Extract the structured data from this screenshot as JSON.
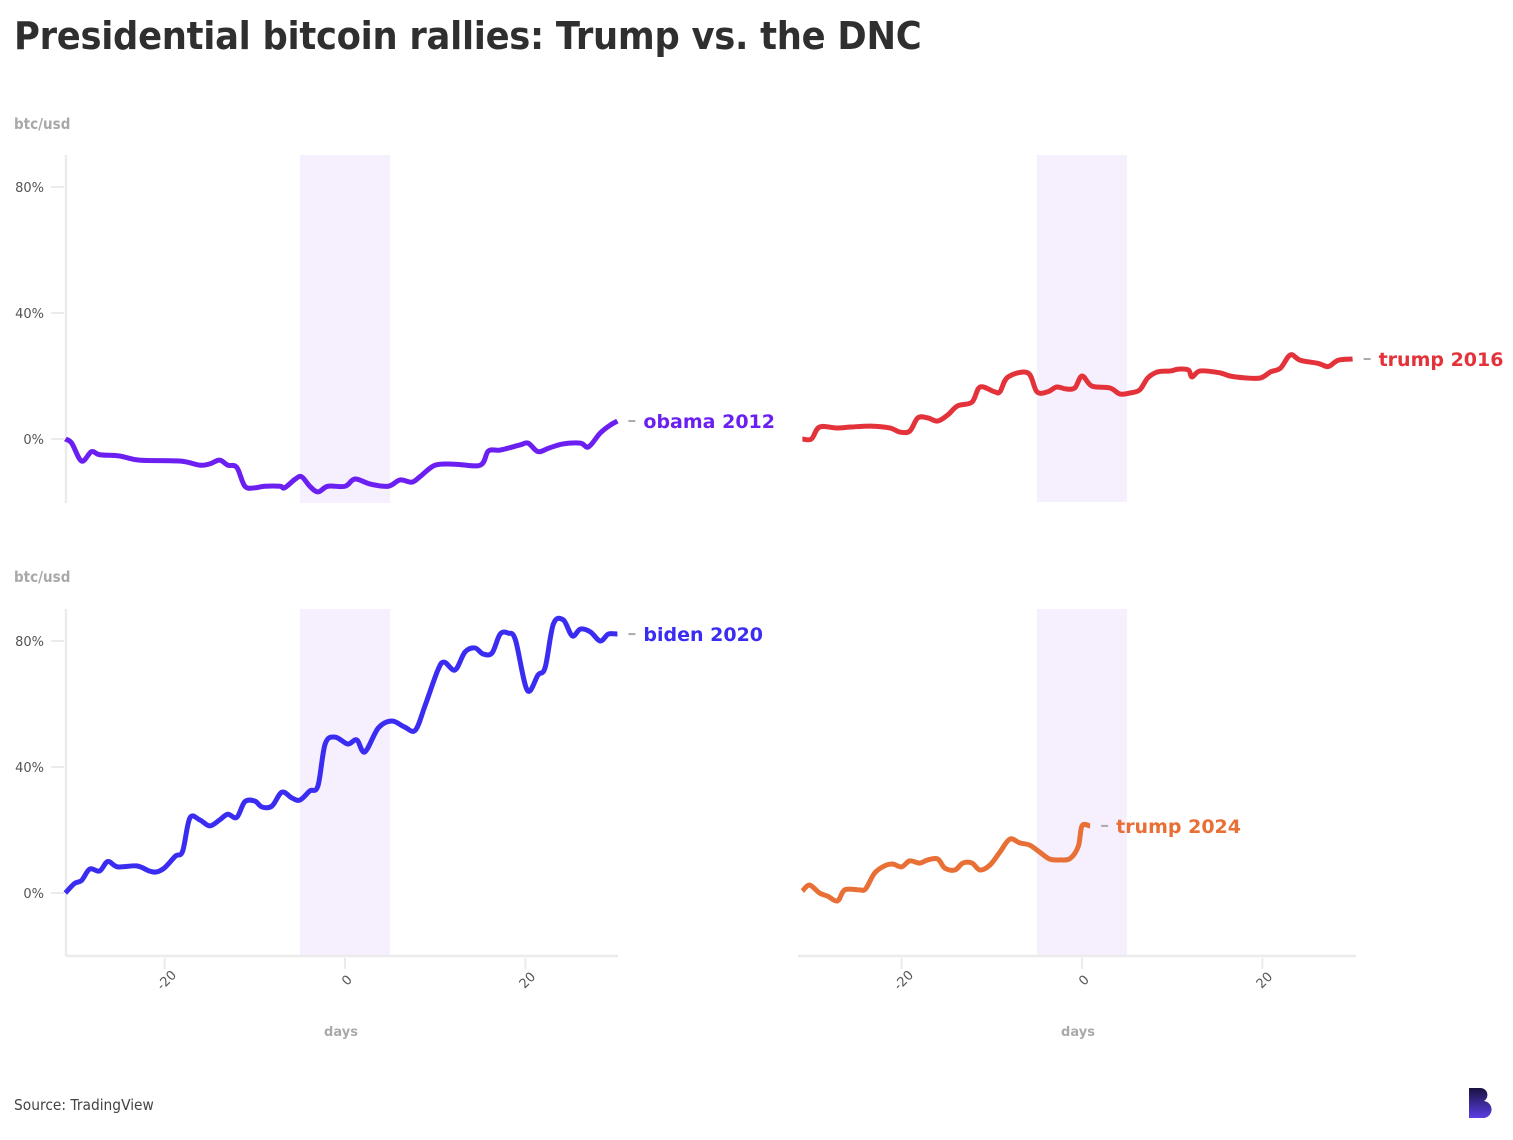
{
  "title": "Presidential bitcoin rallies: Trump vs. the DNC",
  "source": "Source: TradingView",
  "logo": "brand-b-logo",
  "chart_data": [
    {
      "type": "line",
      "panel": "top-left",
      "ylabel": "btc/usd",
      "xlabel": "",
      "yticks": [
        "0%",
        "40%",
        "80%"
      ],
      "ytick_values": [
        0,
        40,
        80
      ],
      "xticks": [
        "-20",
        "0",
        "20"
      ],
      "xtick_values": [
        -20,
        0,
        20
      ],
      "show_y_axis": true,
      "show_x_axis": false,
      "ylim": [
        -20,
        90
      ],
      "xlim": [
        -31,
        30
      ],
      "highlight_band": [
        -5,
        5
      ],
      "series": [
        {
          "name": "obama 2012",
          "color": "#6b1ff0",
          "x": [
            -31,
            -30.3,
            -29.2,
            -28.1,
            -27.2,
            -25,
            -22.8,
            -18.3,
            -16.1,
            -15,
            -13.9,
            -13,
            -12,
            -11.1,
            -10,
            -8.9,
            -7.2,
            -6.7,
            -5.5,
            -4.8,
            -3.9,
            -3,
            -1.9,
            0,
            1.1,
            2.8,
            4.8,
            6.1,
            7.4,
            8.3,
            10,
            12.2,
            15,
            15.9,
            17.2,
            19.4,
            20.3,
            21.4,
            22.6,
            24.1,
            26.1,
            27,
            28.3,
            29.4,
            30.2
          ],
          "values": [
            0,
            -1.3,
            -7,
            -4,
            -5,
            -5.4,
            -6.7,
            -7,
            -8.3,
            -7.9,
            -6.7,
            -8.3,
            -9,
            -15,
            -15.5,
            -15,
            -15,
            -15.5,
            -12.7,
            -12,
            -15,
            -16.8,
            -15,
            -15,
            -12.7,
            -14.3,
            -15,
            -13,
            -13.7,
            -12,
            -8.3,
            -8,
            -8.3,
            -3.8,
            -3.5,
            -1.9,
            -1.3,
            -4,
            -2.9,
            -1.6,
            -1.3,
            -2.5,
            1.9,
            4.4,
            5.7
          ]
        }
      ]
    },
    {
      "type": "line",
      "panel": "top-right",
      "ylabel": "",
      "show_y_axis": false,
      "show_x_axis": false,
      "ylim": [
        -20,
        90
      ],
      "xlim": [
        -31,
        30
      ],
      "highlight_band": [
        -5,
        5
      ],
      "series": [
        {
          "name": "trump 2016",
          "color": "#e3323a",
          "x": [
            -31,
            -30,
            -29.1,
            -27.2,
            -25.6,
            -23.4,
            -21.3,
            -20.2,
            -19.1,
            -18.2,
            -17.1,
            -16,
            -14.9,
            -13.8,
            -12.2,
            -11.3,
            -9.7,
            -9.1,
            -8.2,
            -6,
            -5,
            -3.8,
            -2.8,
            -1.8,
            -0.8,
            0,
            1.1,
            3.1,
            4.2,
            5.3,
            6.4,
            7.3,
            8.4,
            9.8,
            10.7,
            11.8,
            12.2,
            13.1,
            15.3,
            16.4,
            18.1,
            19.8,
            20.9,
            22,
            23.1,
            24.2,
            26.2,
            27.3,
            28.4,
            30
          ],
          "values": [
            0,
            0,
            3.8,
            3.5,
            3.8,
            4.1,
            3.5,
            2.2,
            2.5,
            6.7,
            6.7,
            5.7,
            7.6,
            10.5,
            11.7,
            16.5,
            15,
            15,
            19.7,
            21,
            15,
            15,
            16.5,
            15.9,
            16.2,
            20,
            16.8,
            16.2,
            14.3,
            14.6,
            15.6,
            19.4,
            21.3,
            21.6,
            22.2,
            21.9,
            19.7,
            21.6,
            21,
            20,
            19.4,
            19.4,
            21.3,
            22.5,
            26.7,
            25,
            24,
            23,
            25,
            25.4
          ]
        }
      ]
    },
    {
      "type": "line",
      "panel": "bottom-left",
      "ylabel": "btc/usd",
      "xlabel": "days",
      "yticks": [
        "0%",
        "40%",
        "80%"
      ],
      "ytick_values": [
        0,
        40,
        80
      ],
      "xticks": [
        "-20",
        "0",
        "20"
      ],
      "xtick_values": [
        -20,
        0,
        20
      ],
      "show_y_axis": true,
      "show_x_axis": true,
      "ylim": [
        -20,
        90
      ],
      "xlim": [
        -31,
        30
      ],
      "highlight_band": [
        -5,
        5
      ],
      "series": [
        {
          "name": "biden 2020",
          "color": "#3b2cf2",
          "x": [
            -31,
            -30,
            -29.2,
            -28.3,
            -27.2,
            -26.3,
            -25.2,
            -23.1,
            -21.7,
            -20.9,
            -20,
            -18.8,
            -18,
            -17.2,
            -16.1,
            -15,
            -13.9,
            -13,
            -12,
            -11.1,
            -10,
            -9.2,
            -8.1,
            -7,
            -5.9,
            -5,
            -3.9,
            -3,
            -2.2,
            -1.1,
            0.3,
            1.3,
            2.2,
            3.7,
            5.2,
            6.6,
            7.8,
            8.9,
            10.3,
            11,
            12.2,
            13.3,
            14.4,
            15.3,
            16.3,
            17.2,
            18.1,
            18.9,
            20.2,
            21.4,
            22.2,
            23.1,
            24.2,
            25.2,
            26.1,
            27.2,
            28.3,
            29.2,
            30.2
          ],
          "values": [
            0,
            3,
            4,
            7.6,
            7,
            10,
            8.3,
            8.6,
            7,
            6.7,
            8,
            11.7,
            13.3,
            23.8,
            23.2,
            21.3,
            23.2,
            25,
            24,
            29,
            29.2,
            27.3,
            27.6,
            32,
            30.2,
            29.5,
            32.4,
            34,
            47.3,
            49.5,
            47.3,
            48.6,
            44.8,
            52.4,
            54.6,
            52.7,
            51.7,
            59.7,
            70.8,
            73.3,
            70.8,
            76.5,
            77.8,
            75.9,
            76.2,
            82.2,
            82.5,
            80.3,
            64.4,
            69.2,
            71.7,
            85.4,
            86.7,
            81.6,
            83.8,
            82.9,
            80,
            82.2,
            82.2
          ]
        }
      ]
    },
    {
      "type": "line",
      "panel": "bottom-right",
      "ylabel": "",
      "xlabel": "days",
      "xticks": [
        "-20",
        "0",
        "20"
      ],
      "xtick_values": [
        -20,
        0,
        20
      ],
      "show_y_axis": false,
      "show_x_axis": true,
      "ylim": [
        -20,
        90
      ],
      "xlim": [
        -31,
        30
      ],
      "highlight_band": [
        -5,
        5
      ],
      "series": [
        {
          "name": "trump 2024",
          "color": "#e86f35",
          "x": [
            -31,
            -30.2,
            -29.1,
            -28.2,
            -27.1,
            -26.3,
            -24.7,
            -24,
            -23,
            -21.9,
            -21,
            -20,
            -19.1,
            -18,
            -17.1,
            -16,
            -15.2,
            -14.1,
            -13.2,
            -12.2,
            -11.3,
            -10.2,
            -9.1,
            -8,
            -6.9,
            -5.8,
            -4.7,
            -3.6,
            -2.4,
            -1.3,
            -0.4,
            0,
            0.9
          ],
          "values": [
            0.6,
            2.5,
            0,
            -1,
            -2.5,
            1,
            1,
            1.3,
            6.3,
            8.6,
            9.2,
            8.3,
            10.2,
            9.5,
            10.5,
            10.8,
            7.9,
            7.3,
            9.5,
            9.5,
            7.3,
            8.9,
            13,
            17.1,
            15.9,
            15.2,
            13,
            10.8,
            10.5,
            11,
            14.9,
            21.3,
            21.3
          ]
        }
      ]
    }
  ]
}
